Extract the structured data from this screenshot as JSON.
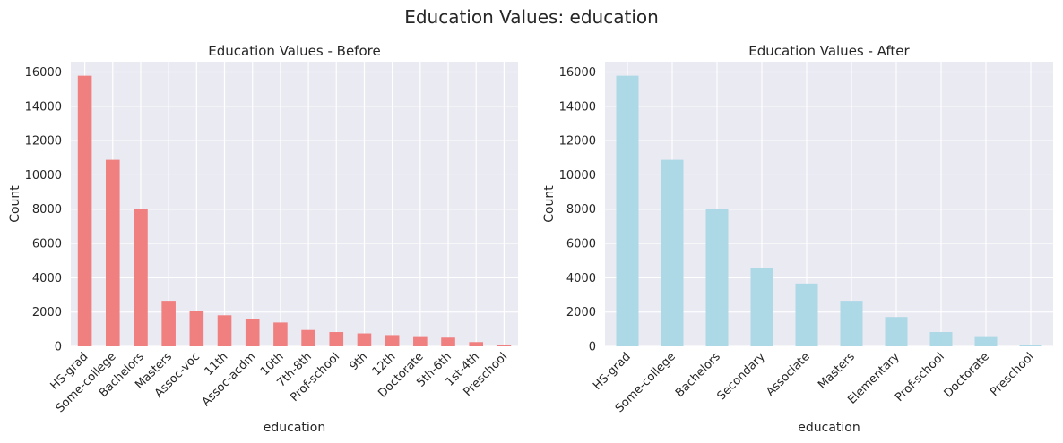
{
  "suptitle": "Education Values: education",
  "colors": {
    "panel_bg": "#eaeaf2",
    "grid": "#ffffff",
    "before_bar": "#f08080",
    "after_bar": "#add8e6",
    "text": "#262626"
  },
  "chart_data": [
    {
      "type": "bar",
      "title": "Education Values - Before",
      "xlabel": "education",
      "ylabel": "Count",
      "ylim": [
        0,
        16600
      ],
      "yticks": [
        0,
        2000,
        4000,
        6000,
        8000,
        10000,
        12000,
        14000,
        16000
      ],
      "grid": true,
      "categories": [
        "HS-grad",
        "Some-college",
        "Bachelors",
        "Masters",
        "Assoc-voc",
        "11th",
        "Assoc-acdm",
        "10th",
        "7th-8th",
        "Prof-school",
        "9th",
        "12th",
        "Doctorate",
        "5th-6th",
        "1st-4th",
        "Preschool"
      ],
      "values": [
        15784,
        10878,
        8025,
        2657,
        2061,
        1812,
        1601,
        1389,
        955,
        834,
        756,
        657,
        594,
        509,
        247,
        83
      ]
    },
    {
      "type": "bar",
      "title": "Education Values - After",
      "xlabel": "education",
      "ylabel": "Count",
      "ylim": [
        0,
        16600
      ],
      "yticks": [
        0,
        2000,
        4000,
        6000,
        8000,
        10000,
        12000,
        14000,
        16000
      ],
      "grid": true,
      "categories": [
        "HS-grad",
        "Some-college",
        "Bachelors",
        "Secondary",
        "Associate",
        "Masters",
        "Elementary",
        "Prof-school",
        "Doctorate",
        "Preschool"
      ],
      "values": [
        15784,
        10878,
        8025,
        4582,
        3662,
        2657,
        1711,
        834,
        594,
        83
      ]
    }
  ]
}
